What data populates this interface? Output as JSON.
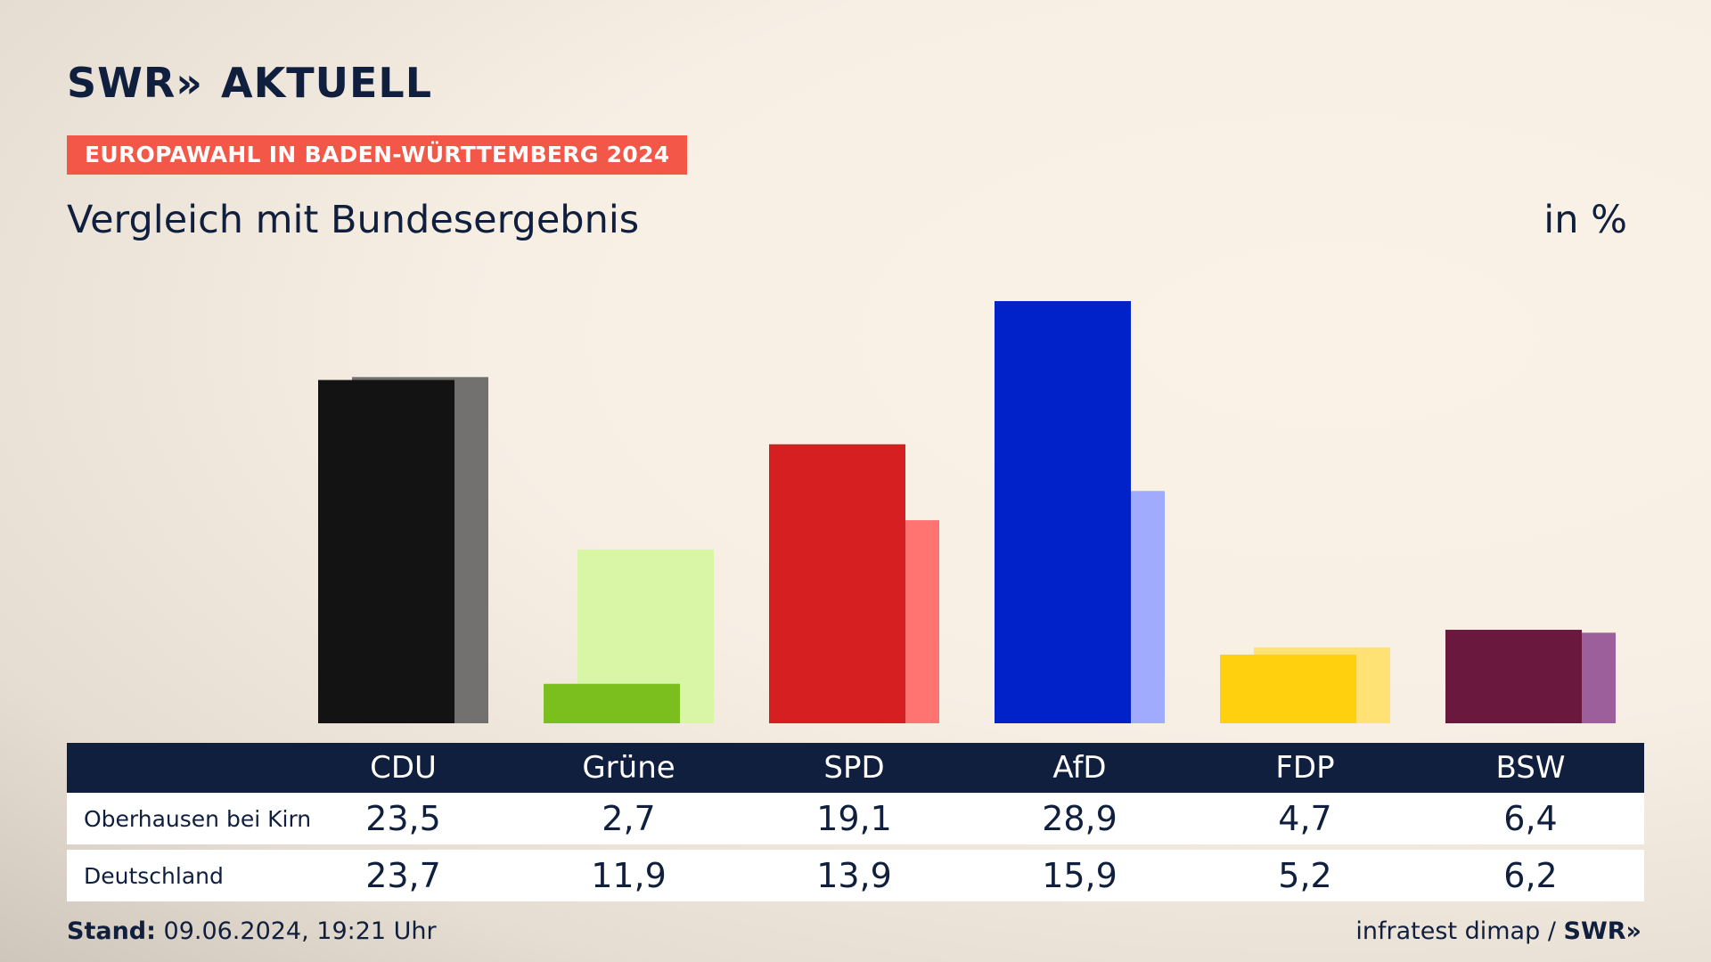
{
  "header": {
    "logo": "SWR",
    "logo_chevrons": "»",
    "logo_suffix": "AKTUELL",
    "badge": "EUROPAWAHL IN BADEN-WÜRTTEMBERG 2024",
    "subtitle": "Vergleich mit Bundesergebnis",
    "unit": "in %"
  },
  "footer": {
    "stand_label": "Stand:",
    "stand_value": "09.06.2024, 19:21 Uhr",
    "source": "infratest dimap /",
    "brand": "SWR»"
  },
  "chart_data": {
    "type": "bar",
    "title": "",
    "subtitle": "Vergleich mit Bundesergebnis",
    "unit": "in %",
    "categories": [
      "CDU",
      "Grüne",
      "SPD",
      "AfD",
      "FDP",
      "BSW"
    ],
    "series": [
      {
        "name": "Oberhausen bei Kirn",
        "values": [
          "23,5",
          "2,7",
          "19,1",
          "28,9",
          "4,7",
          "6,4"
        ],
        "numeric": [
          23.5,
          2.7,
          19.1,
          28.9,
          4.7,
          6.4
        ]
      },
      {
        "name": "Deutschland",
        "values": [
          "23,7",
          "11,9",
          "13,9",
          "15,9",
          "5,2",
          "6,2"
        ],
        "numeric": [
          23.7,
          11.9,
          13.9,
          15.9,
          5.2,
          6.2
        ]
      }
    ],
    "colors_primary": [
      "#131313",
      "#7bbf1f",
      "#d51f20",
      "#0222c9",
      "#ffd00d",
      "#6b183f"
    ],
    "colors_secondary": [
      "#727170",
      "#d8f6a6",
      "#ff7471",
      "#a0abfe",
      "#ffe273",
      "#9d5f9b"
    ],
    "ylim": [
      0,
      30
    ],
    "grid": false,
    "legend": "none"
  }
}
